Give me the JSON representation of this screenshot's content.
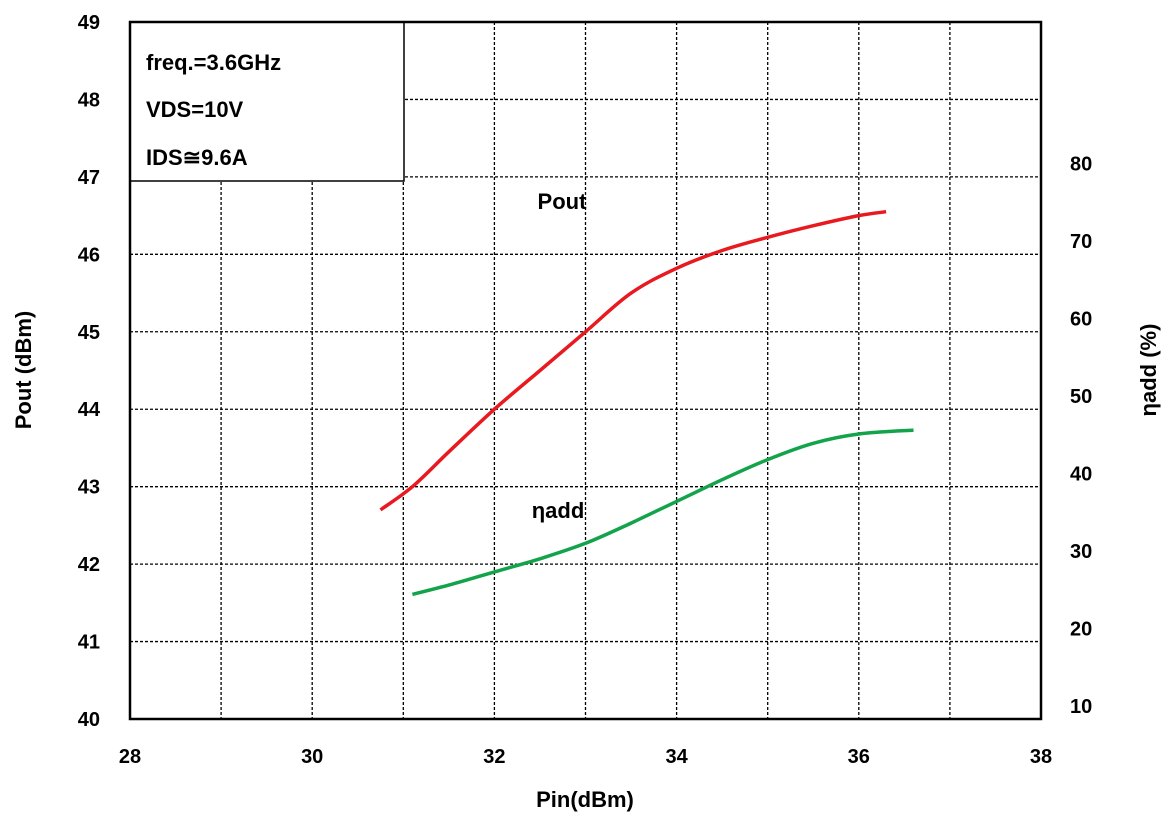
{
  "chart_data": {
    "type": "line",
    "x": {
      "label": "Pin(dBm)",
      "range": [
        28,
        38
      ],
      "ticks": [
        "28",
        "30",
        "32",
        "34",
        "36",
        "38"
      ]
    },
    "y_left": {
      "label": "Pout (dBm)",
      "range": [
        40,
        49
      ],
      "ticks": [
        "40",
        "41",
        "42",
        "43",
        "44",
        "45",
        "46",
        "47",
        "48",
        "49"
      ]
    },
    "y_right": {
      "label": "ηadd (%)",
      "range": [
        10,
        80
      ],
      "ticks": [
        "10",
        "20",
        "30",
        "40",
        "50",
        "60",
        "70",
        "80"
      ]
    },
    "grid": true,
    "conditions": [
      "freq.=3.6GHz",
      "VDS=10V",
      "IDS≅9.6A"
    ],
    "series": [
      {
        "name": "Pout",
        "axis": "left",
        "color": "#e8191f",
        "points": [
          [
            30.75,
            42.7
          ],
          [
            31.1,
            43.0
          ],
          [
            31.5,
            43.45
          ],
          [
            32.0,
            44.0
          ],
          [
            32.5,
            44.5
          ],
          [
            33.0,
            45.0
          ],
          [
            33.5,
            45.5
          ],
          [
            34.0,
            45.82
          ],
          [
            34.5,
            46.05
          ],
          [
            35.0,
            46.22
          ],
          [
            35.5,
            46.37
          ],
          [
            36.0,
            46.5
          ],
          [
            36.3,
            46.55
          ]
        ]
      },
      {
        "name": "ηadd",
        "axis": "right",
        "color": "#13a34a",
        "points": [
          [
            31.1,
            24.4
          ],
          [
            31.5,
            25.6
          ],
          [
            32.0,
            27.3
          ],
          [
            32.5,
            29.0
          ],
          [
            33.0,
            31.0
          ],
          [
            33.5,
            33.6
          ],
          [
            34.0,
            36.4
          ],
          [
            34.5,
            39.2
          ],
          [
            35.0,
            41.8
          ],
          [
            35.5,
            43.9
          ],
          [
            36.0,
            45.1
          ],
          [
            36.6,
            45.6
          ]
        ]
      }
    ],
    "annotations": [
      "Pout",
      "ηadd"
    ]
  }
}
